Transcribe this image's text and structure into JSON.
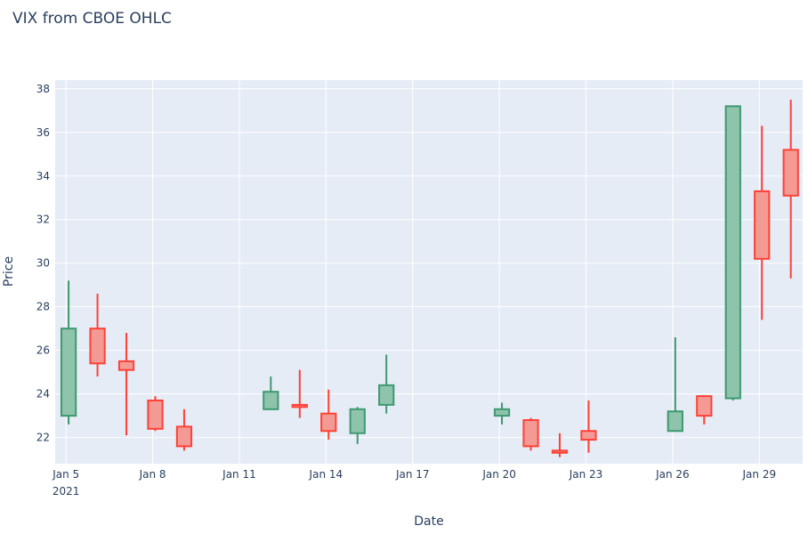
{
  "chart_data": {
    "type": "candlestick",
    "title": "VIX from CBOE OHLC",
    "xlabel": "Date",
    "ylabel": "Price",
    "ylim": [
      20.8,
      38.4
    ],
    "xlim": [
      "2021-01-04T15:00",
      "2021-01-30T12:00"
    ],
    "grid": true,
    "legend": "none",
    "x_ticks": [
      {
        "date": "2021-01-05",
        "label": "Jan 5",
        "sublabel": "2021"
      },
      {
        "date": "2021-01-08",
        "label": "Jan 8"
      },
      {
        "date": "2021-01-11",
        "label": "Jan 11"
      },
      {
        "date": "2021-01-14",
        "label": "Jan 14"
      },
      {
        "date": "2021-01-17",
        "label": "Jan 17"
      },
      {
        "date": "2021-01-20",
        "label": "Jan 20"
      },
      {
        "date": "2021-01-23",
        "label": "Jan 23"
      },
      {
        "date": "2021-01-26",
        "label": "Jan 26"
      },
      {
        "date": "2021-01-29",
        "label": "Jan 29"
      }
    ],
    "y_ticks": [
      22,
      24,
      26,
      28,
      30,
      32,
      34,
      36,
      38
    ],
    "colors": {
      "increasing_line": "#3d9970",
      "increasing_fill": "#8fc4ac",
      "decreasing_line": "#ff4136",
      "decreasing_fill": "#f49a95",
      "plot_bg": "#e5ecf6",
      "grid": "#ffffff",
      "text": "#2a3f5f"
    },
    "series": [
      {
        "date": "2021-01-05",
        "open": 23.0,
        "high": 29.2,
        "low": 22.6,
        "close": 27.0
      },
      {
        "date": "2021-01-06",
        "open": 27.0,
        "high": 28.6,
        "low": 24.8,
        "close": 25.4
      },
      {
        "date": "2021-01-07",
        "open": 25.5,
        "high": 26.8,
        "low": 22.1,
        "close": 25.1
      },
      {
        "date": "2021-01-08",
        "open": 23.7,
        "high": 23.9,
        "low": 22.3,
        "close": 22.4
      },
      {
        "date": "2021-01-09",
        "open": 22.5,
        "high": 23.3,
        "low": 21.4,
        "close": 21.6
      },
      {
        "date": "2021-01-12",
        "open": 23.3,
        "high": 24.8,
        "low": 23.3,
        "close": 24.1
      },
      {
        "date": "2021-01-13",
        "open": 23.5,
        "high": 25.1,
        "low": 22.9,
        "close": 23.4
      },
      {
        "date": "2021-01-14",
        "open": 23.1,
        "high": 24.2,
        "low": 21.9,
        "close": 22.3
      },
      {
        "date": "2021-01-15",
        "open": 22.2,
        "high": 23.4,
        "low": 21.7,
        "close": 23.3
      },
      {
        "date": "2021-01-16",
        "open": 23.5,
        "high": 25.8,
        "low": 23.1,
        "close": 24.4
      },
      {
        "date": "2021-01-20",
        "open": 23.0,
        "high": 23.6,
        "low": 22.6,
        "close": 23.3
      },
      {
        "date": "2021-01-21",
        "open": 22.8,
        "high": 22.9,
        "low": 21.4,
        "close": 21.6
      },
      {
        "date": "2021-01-22",
        "open": 21.4,
        "high": 22.2,
        "low": 21.1,
        "close": 21.3
      },
      {
        "date": "2021-01-23",
        "open": 22.3,
        "high": 23.7,
        "low": 21.3,
        "close": 21.9
      },
      {
        "date": "2021-01-26",
        "open": 22.3,
        "high": 26.6,
        "low": 22.3,
        "close": 23.2
      },
      {
        "date": "2021-01-27",
        "open": 23.9,
        "high": 23.9,
        "low": 22.6,
        "close": 23.0
      },
      {
        "date": "2021-01-28",
        "open": 23.8,
        "high": 37.2,
        "low": 23.7,
        "close": 37.2
      },
      {
        "date": "2021-01-29",
        "open": 33.3,
        "high": 36.3,
        "low": 27.4,
        "close": 30.2
      },
      {
        "date": "2021-01-30",
        "open": 35.2,
        "high": 37.5,
        "low": 29.3,
        "close": 33.1
      }
    ]
  }
}
